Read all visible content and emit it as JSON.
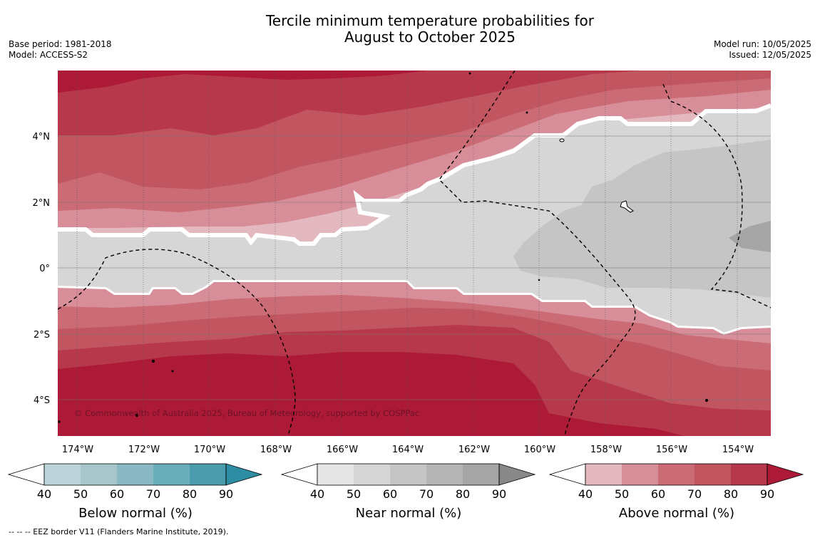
{
  "title": {
    "line1": "Tercile minimum temperature probabilities for",
    "line2": "August to October 2025"
  },
  "meta": {
    "base_period": "Base period: 1981-2018",
    "model": "Model: ACCESS-S2",
    "model_run": "Model run: 10/05/2025",
    "issued": "Issued: 12/05/2025"
  },
  "map": {
    "lon_labels": [
      "174°W",
      "172°W",
      "170°W",
      "168°W",
      "166°W",
      "164°W",
      "162°W",
      "160°W",
      "158°W",
      "156°W",
      "154°W"
    ],
    "lat_labels": [
      "4°N",
      "2°N",
      "0°",
      "2°S",
      "4°S"
    ],
    "copyright": "© Commonwealth of Australia 2025, Bureau of Meteorology, supported by COSPPac",
    "colors": {
      "above": [
        "#e3b8bf",
        "#d88e98",
        "#cb6b75",
        "#c15560",
        "#b8384b",
        "#ad1a37"
      ],
      "near": [
        "#e6e6e6",
        "#d6d6d6",
        "#c5c5c5",
        "#b5b5b5",
        "#a5a5a5",
        "#888888"
      ],
      "below": [
        "#bcd4d9",
        "#a7c6cb",
        "#8ab8c3",
        "#6aaebc",
        "#4a9cad",
        "#2d8ea3"
      ],
      "boundary": "#ffffff",
      "eez_line": "#000000"
    }
  },
  "legends": [
    {
      "name": "Below normal (%)",
      "ticks": [
        "40",
        "50",
        "60",
        "70",
        "80",
        "90"
      ],
      "palette": "below"
    },
    {
      "name": "Near normal (%)",
      "ticks": [
        "40",
        "50",
        "60",
        "70",
        "80",
        "90"
      ],
      "palette": "near"
    },
    {
      "name": "Above normal (%)",
      "ticks": [
        "40",
        "50",
        "60",
        "70",
        "80",
        "90"
      ],
      "palette": "above"
    }
  ],
  "footer": "--  --  -- EEZ border V11 (Flanders Marine Institute, 2019)."
}
